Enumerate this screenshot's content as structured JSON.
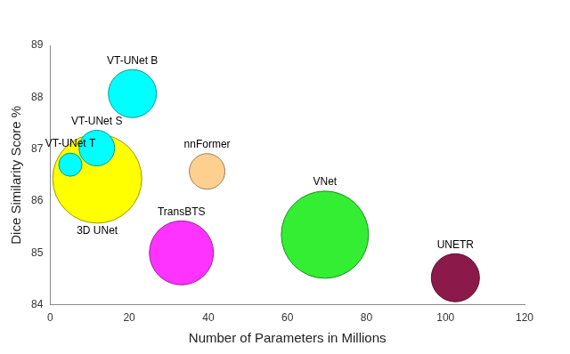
{
  "chart_data": {
    "type": "bubble",
    "x_label": "Number of Parameters in Millions",
    "y_label": "Dice Similarity Score %",
    "labels": [
      "3D UNet",
      "VT-UNet T",
      "VT-UNet S",
      "VT-UNet B",
      "nnFormer",
      "TransBTS",
      "VNet",
      "UNETR"
    ],
    "x": [
      11.9,
      5.1,
      11.8,
      20.8,
      39.7,
      33.2,
      69.5,
      102.5
    ],
    "values": [
      86.43,
      86.7,
      87.02,
      88.07,
      86.57,
      85.0,
      85.35,
      84.52
    ],
    "sizes": [
      50,
      13,
      20,
      27,
      20,
      36,
      49,
      27
    ],
    "colors": [
      "#ffff00",
      "#00ffff",
      "#00ffff",
      "#00ffff",
      "#fdd08f",
      "#ff33ff",
      "#33ee33",
      "#8b1a4b"
    ],
    "xlim": [
      0,
      120
    ],
    "xticks": [
      0,
      20,
      40,
      60,
      80,
      100,
      120
    ],
    "ylim": [
      84,
      89
    ],
    "yticks": [
      84,
      85,
      86,
      87,
      88,
      89
    ],
    "grid": false
  }
}
